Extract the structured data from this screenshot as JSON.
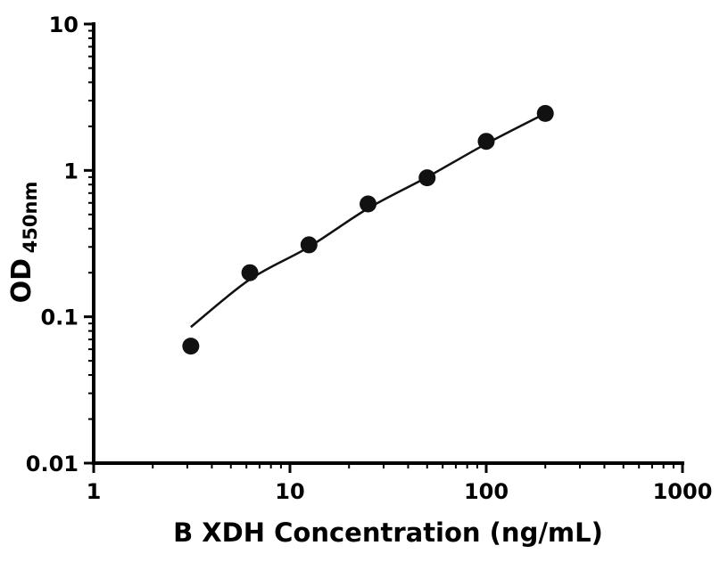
{
  "chart_data": {
    "type": "scatter",
    "title": "",
    "xlabel": "B XDH Concentration (ng/mL)",
    "ylabel_main": "OD",
    "ylabel_sub": "450nm",
    "xscale": "log",
    "yscale": "log",
    "xlim": [
      1,
      1000
    ],
    "ylim": [
      0.01,
      10
    ],
    "grid": false,
    "legend": false,
    "marker_color": "#111111",
    "line_color": "#111111",
    "x_ticks": [
      1,
      10,
      100,
      1000
    ],
    "x_tick_labels": [
      "1",
      "10",
      "100",
      "1000"
    ],
    "y_ticks": [
      0.01,
      0.1,
      1,
      10
    ],
    "y_tick_labels": [
      "0.01",
      "0.1",
      "1",
      "10"
    ],
    "x": [
      3.125,
      6.25,
      12.5,
      25,
      50,
      100,
      200
    ],
    "y": [
      0.063,
      0.2,
      0.31,
      0.59,
      0.89,
      1.58,
      2.45
    ],
    "fit_curve": {
      "x": [
        3.125,
        6.25,
        12.5,
        25,
        50,
        100,
        200
      ],
      "y": [
        0.085,
        0.18,
        0.3,
        0.55,
        0.9,
        1.52,
        2.45
      ]
    }
  }
}
